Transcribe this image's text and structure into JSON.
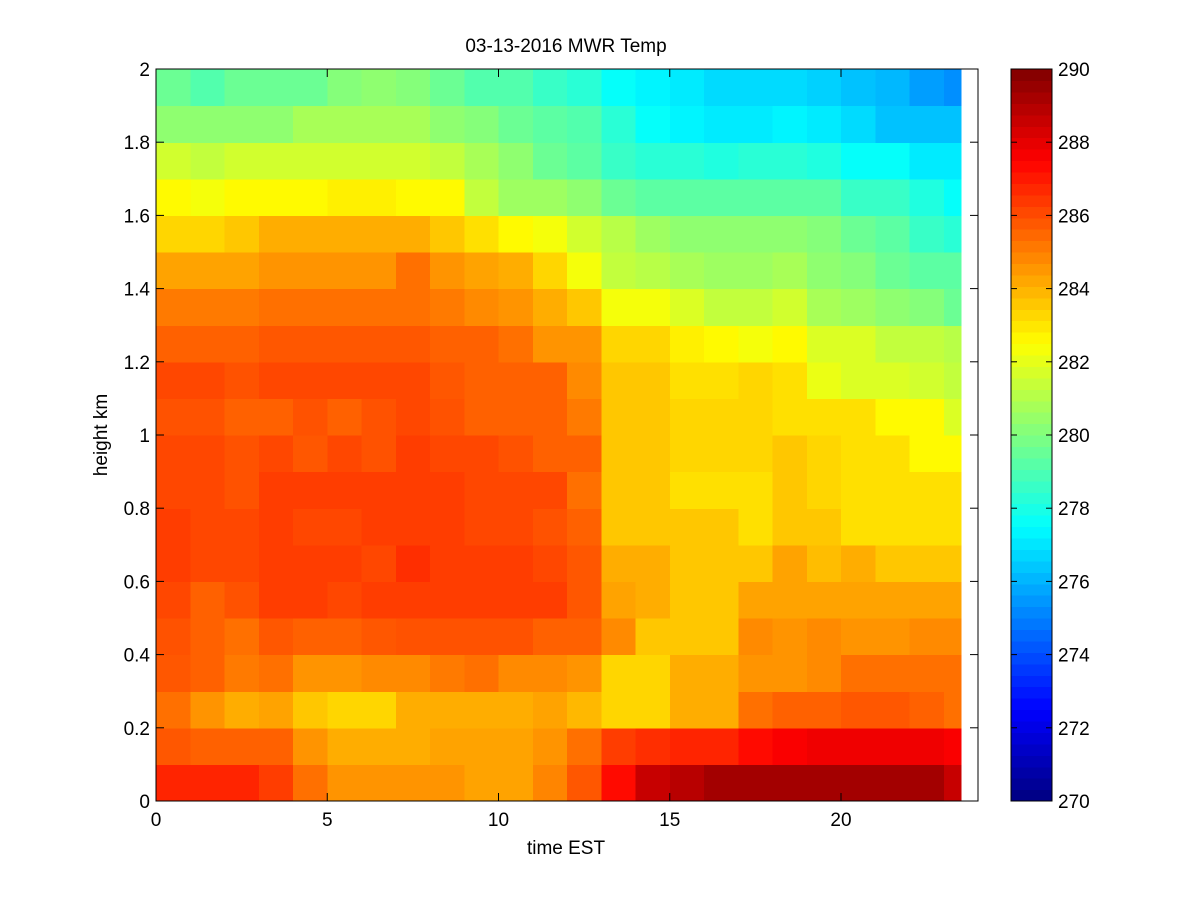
{
  "chart_data": {
    "type": "heatmap",
    "title": "03-13-2016 MWR Temp",
    "xlabel": "time EST",
    "ylabel": "height km",
    "xlim": [
      0,
      24
    ],
    "ylim": [
      0,
      2
    ],
    "x_ticks": [
      0,
      5,
      10,
      15,
      20
    ],
    "y_ticks": [
      0,
      0.2,
      0.4,
      0.6,
      0.8,
      1,
      1.2,
      1.4,
      1.6,
      1.8,
      2
    ],
    "colormap": "jet",
    "colorbar": {
      "min": 270,
      "max": 290,
      "ticks": [
        270,
        272,
        274,
        276,
        278,
        280,
        282,
        284,
        286,
        288,
        290
      ]
    },
    "x": [
      0.5,
      1.5,
      2.5,
      3.5,
      4.5,
      5.5,
      6.5,
      7.5,
      8.5,
      9.5,
      10.5,
      11.5,
      12.5,
      13.5,
      14.5,
      15.5,
      16.5,
      17.5,
      18.5,
      19.5,
      20.5,
      21.5,
      22.5,
      23.5
    ],
    "y": [
      0,
      0.1,
      0.2,
      0.3,
      0.4,
      0.5,
      0.6,
      0.7,
      0.8,
      0.9,
      1.0,
      1.1,
      1.2,
      1.3,
      1.4,
      1.5,
      1.6,
      1.7,
      1.8,
      1.9,
      2.0
    ],
    "values": [
      [
        286.8,
        286.8,
        286.8,
        286.3,
        285.3,
        284.6,
        284.6,
        284.6,
        284.6,
        284.3,
        284.3,
        284.9,
        285.8,
        287.3,
        288.6,
        288.9,
        289.3,
        289.3,
        289.3,
        289.3,
        289.3,
        289.3,
        289.3,
        288.6
      ],
      [
        285.8,
        285.6,
        285.6,
        285.6,
        284.6,
        284.1,
        284.1,
        284.1,
        284.3,
        284.3,
        284.3,
        284.6,
        285.3,
        286.3,
        286.6,
        286.8,
        286.8,
        287.3,
        287.6,
        287.8,
        287.8,
        287.8,
        287.8,
        287.6
      ],
      [
        285.3,
        284.6,
        284.1,
        284.3,
        283.6,
        283.3,
        283.3,
        284.1,
        284.1,
        284.1,
        284.1,
        284.3,
        283.9,
        283.3,
        283.3,
        284.1,
        284.1,
        285.3,
        285.6,
        285.6,
        285.8,
        285.8,
        285.6,
        285.3
      ],
      [
        285.8,
        285.6,
        285.1,
        285.3,
        284.6,
        284.6,
        284.8,
        284.8,
        285.1,
        285.3,
        284.8,
        284.8,
        284.6,
        283.3,
        283.3,
        284.1,
        284.1,
        284.6,
        284.6,
        284.8,
        285.3,
        285.3,
        285.3,
        285.3
      ],
      [
        285.9,
        285.6,
        285.3,
        285.8,
        285.6,
        285.6,
        285.8,
        285.9,
        285.9,
        285.9,
        285.9,
        285.6,
        285.6,
        284.8,
        283.6,
        283.6,
        283.6,
        284.8,
        284.6,
        284.8,
        284.6,
        284.6,
        284.8,
        284.8
      ],
      [
        286.1,
        285.6,
        285.9,
        286.3,
        286.3,
        286.1,
        286.3,
        286.3,
        286.3,
        286.3,
        286.3,
        286.3,
        285.8,
        284.3,
        284.1,
        283.6,
        283.6,
        284.3,
        284.3,
        284.3,
        284.3,
        284.3,
        284.3,
        284.3
      ],
      [
        286.3,
        286.1,
        286.1,
        286.3,
        286.3,
        286.3,
        286.1,
        286.6,
        286.3,
        286.3,
        286.3,
        286.1,
        285.8,
        284.1,
        284.1,
        283.6,
        283.6,
        283.6,
        284.3,
        283.8,
        284.1,
        283.6,
        283.6,
        283.6
      ],
      [
        286.3,
        286.1,
        286.1,
        286.3,
        286.1,
        286.1,
        286.3,
        286.3,
        286.3,
        286.1,
        286.1,
        285.9,
        285.6,
        283.6,
        283.6,
        283.6,
        283.6,
        283.1,
        283.6,
        283.6,
        283.1,
        283.1,
        283.1,
        283.1
      ],
      [
        286.1,
        286.1,
        285.9,
        286.3,
        286.3,
        286.3,
        286.3,
        286.3,
        286.3,
        286.1,
        286.1,
        286.1,
        285.3,
        283.6,
        283.6,
        283.1,
        283.1,
        283.1,
        283.6,
        283.3,
        283.1,
        283.1,
        283.1,
        283.1
      ],
      [
        286.1,
        286.1,
        285.9,
        286.1,
        285.8,
        286.1,
        285.9,
        286.3,
        286.1,
        286.1,
        285.9,
        285.6,
        285.6,
        283.6,
        283.6,
        283.3,
        283.3,
        283.3,
        283.6,
        283.3,
        283.1,
        283.1,
        282.6,
        282.6
      ],
      [
        285.9,
        285.9,
        285.6,
        285.6,
        285.9,
        285.6,
        285.9,
        286.1,
        285.9,
        285.6,
        285.6,
        285.6,
        285.1,
        283.6,
        283.6,
        283.3,
        283.3,
        283.3,
        283.1,
        283.1,
        283.1,
        282.6,
        282.6,
        281.8
      ],
      [
        286.1,
        286.1,
        285.9,
        286.1,
        286.1,
        286.1,
        286.1,
        286.1,
        285.8,
        285.6,
        285.6,
        285.6,
        284.8,
        283.6,
        283.6,
        283.1,
        283.1,
        283.3,
        283.1,
        282.1,
        281.8,
        281.8,
        281.6,
        281.3
      ],
      [
        285.6,
        285.6,
        285.6,
        285.8,
        285.8,
        285.8,
        285.8,
        285.8,
        285.6,
        285.6,
        285.3,
        284.6,
        284.6,
        283.3,
        283.3,
        282.8,
        282.6,
        282.3,
        282.6,
        281.8,
        281.8,
        281.3,
        281.3,
        281.1
      ],
      [
        285.1,
        285.1,
        285.1,
        285.3,
        285.3,
        285.3,
        285.3,
        285.3,
        285.1,
        284.8,
        284.6,
        284.1,
        283.6,
        282.3,
        282.3,
        281.8,
        281.3,
        281.3,
        281.6,
        280.8,
        280.6,
        280.3,
        280.1,
        279.6
      ],
      [
        284.3,
        284.3,
        284.3,
        284.6,
        284.6,
        284.6,
        284.6,
        285.3,
        284.6,
        284.3,
        284.1,
        283.3,
        282.3,
        281.3,
        281.1,
        280.8,
        280.6,
        280.6,
        280.8,
        280.3,
        280.1,
        279.6,
        279.3,
        279.3
      ],
      [
        283.3,
        283.3,
        283.6,
        284.1,
        284.1,
        284.1,
        284.1,
        284.1,
        283.6,
        283.1,
        282.6,
        282.3,
        281.6,
        281.1,
        280.6,
        280.3,
        280.3,
        280.3,
        280.3,
        280.1,
        279.6,
        279.3,
        278.6,
        278.3
      ],
      [
        282.6,
        282.3,
        282.6,
        282.6,
        282.6,
        282.8,
        282.8,
        282.6,
        282.6,
        281.3,
        280.6,
        280.6,
        280.3,
        279.6,
        279.3,
        279.3,
        279.3,
        279.3,
        279.3,
        279.3,
        278.6,
        278.6,
        278.1,
        277.6
      ],
      [
        281.6,
        281.3,
        281.6,
        281.6,
        281.6,
        281.6,
        281.6,
        281.6,
        281.3,
        280.8,
        280.3,
        279.6,
        279.3,
        278.6,
        278.3,
        278.3,
        278.1,
        278.3,
        278.3,
        278.1,
        277.6,
        277.6,
        277.1,
        277.1
      ],
      [
        280.3,
        280.3,
        280.3,
        280.3,
        280.8,
        280.8,
        280.8,
        280.8,
        280.3,
        280.1,
        279.6,
        279.3,
        279.1,
        278.3,
        277.6,
        277.3,
        277.1,
        277.1,
        277.3,
        277.1,
        276.8,
        276.3,
        276.3,
        276.3
      ],
      [
        279.6,
        279.1,
        279.6,
        279.6,
        279.6,
        280.1,
        280.3,
        280.1,
        279.6,
        279.1,
        279.1,
        278.6,
        278.3,
        277.6,
        277.3,
        277.1,
        276.8,
        276.8,
        276.8,
        276.6,
        276.3,
        276.1,
        275.6,
        275.3
      ],
      [
        278.6,
        278.3,
        278.3,
        278.6,
        278.6,
        278.6,
        278.6,
        278.6,
        278.3,
        277.6,
        277.3,
        277.1,
        276.8,
        276.3,
        276.1,
        275.8,
        275.6,
        275.6,
        275.3,
        274.8,
        274.6,
        274.3,
        273.8,
        274.6
      ]
    ]
  }
}
